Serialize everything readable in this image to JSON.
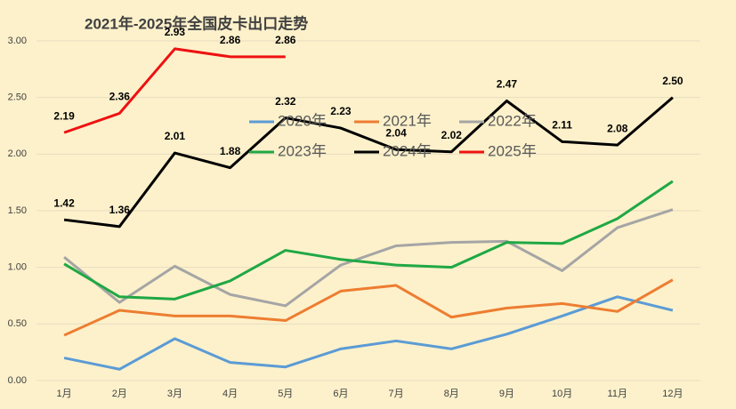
{
  "chart_data": {
    "type": "line",
    "title": "2021年-2025年全国皮卡出口走势",
    "categories": [
      "1月",
      "2月",
      "3月",
      "4月",
      "5月",
      "6月",
      "7月",
      "8月",
      "9月",
      "10月",
      "11月",
      "12月"
    ],
    "ylim": [
      0,
      3
    ],
    "yticks": [
      {
        "value": 0,
        "label": "0.00"
      },
      {
        "value": 0.5,
        "label": "0.50"
      },
      {
        "value": 1,
        "label": "1.00"
      },
      {
        "value": 1.5,
        "label": "1.50"
      },
      {
        "value": 2,
        "label": "2.00"
      },
      {
        "value": 2.5,
        "label": "2.50"
      },
      {
        "value": 3,
        "label": "3.00"
      }
    ],
    "grid": true,
    "series": [
      {
        "name": "2020年",
        "color": "#5b9bd5",
        "values": [
          0.2,
          0.1,
          0.37,
          0.16,
          0.12,
          0.28,
          0.35,
          0.28,
          0.41,
          0.57,
          0.74,
          0.62
        ]
      },
      {
        "name": "2021年",
        "color": "#ed7d31",
        "values": [
          0.4,
          0.62,
          0.57,
          0.57,
          0.53,
          0.79,
          0.84,
          0.56,
          0.64,
          0.68,
          0.61,
          0.89
        ]
      },
      {
        "name": "2022年",
        "color": "#a5a5a5",
        "values": [
          1.09,
          0.69,
          1.01,
          0.76,
          0.66,
          1.02,
          1.19,
          1.22,
          1.23,
          0.97,
          1.35,
          1.51
        ]
      },
      {
        "name": "2023年",
        "color": "#1fa844",
        "values": [
          1.03,
          0.74,
          0.72,
          0.88,
          1.15,
          1.07,
          1.02,
          1.0,
          1.22,
          1.21,
          1.43,
          1.76
        ]
      },
      {
        "name": "2024年",
        "color": "#000000",
        "values": [
          1.42,
          1.36,
          2.01,
          1.88,
          2.32,
          2.23,
          2.04,
          2.02,
          2.47,
          2.11,
          2.08,
          2.5
        ],
        "value_labels": [
          "1.42",
          "1.36",
          "2.01",
          "1.88",
          "2.32",
          "2.23",
          "2.04",
          "2.02",
          "2.47",
          "2.11",
          "2.08",
          "2.50"
        ]
      },
      {
        "name": "2025年",
        "color": "#ee1111",
        "values": [
          2.19,
          2.36,
          2.93,
          2.86,
          2.86,
          null,
          null,
          null,
          null,
          null,
          null,
          null
        ],
        "value_labels": [
          "2.19",
          "2.36",
          "2.93",
          "2.86",
          "2.86",
          null,
          null,
          null,
          null,
          null,
          null,
          null
        ]
      }
    ]
  }
}
